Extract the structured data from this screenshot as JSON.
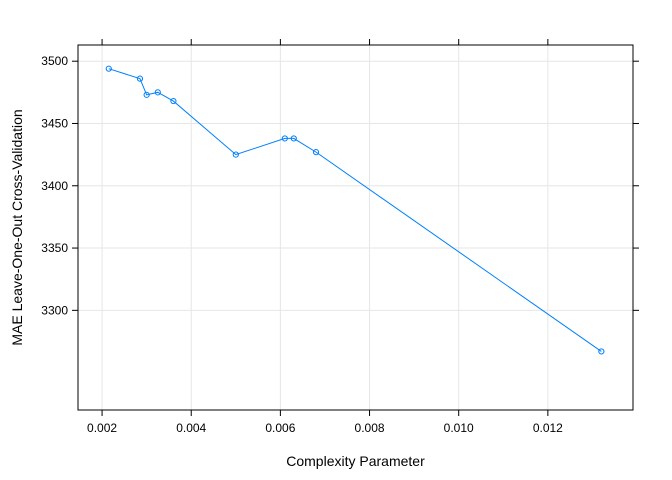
{
  "chart_data": {
    "type": "line",
    "title": "",
    "xlabel": "Complexity Parameter",
    "ylabel": "MAE Leave-One-Out Cross-Validation",
    "xlim": [
      0.00146,
      0.01391
    ],
    "ylim": [
      3220,
      3513
    ],
    "x_ticks": [
      0.002,
      0.004,
      0.006,
      0.008,
      0.01,
      0.012
    ],
    "x_tick_labels": [
      "0.002",
      "0.004",
      "0.006",
      "0.008",
      "0.010",
      "0.012"
    ],
    "y_ticks": [
      3300,
      3350,
      3400,
      3450,
      3500
    ],
    "y_tick_labels": [
      "3300",
      "3350",
      "3400",
      "3450",
      "3500"
    ],
    "grid": true,
    "series": [
      {
        "color": "#0080ff",
        "x": [
          0.00215,
          0.00285,
          0.003,
          0.00325,
          0.0036,
          0.005,
          0.0061,
          0.0063,
          0.0068,
          0.0132
        ],
        "y": [
          3494,
          3486,
          3473,
          3475,
          3468,
          3425,
          3438,
          3438,
          3427,
          3267
        ]
      }
    ]
  }
}
